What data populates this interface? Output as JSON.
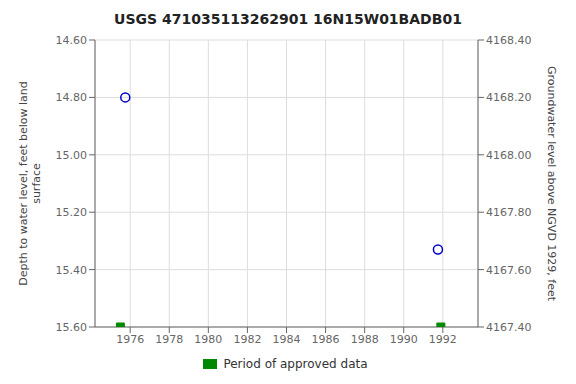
{
  "chart_data": {
    "type": "scatter",
    "title": "USGS 471035113262901 16N15W01BADB01",
    "ylabel": "Depth to water level, feet below land\n surface",
    "y2label": "Groundwater level above NGVD 1929, feet",
    "xlim": [
      1974.2,
      1993.8
    ],
    "xticks": [
      1976,
      1978,
      1980,
      1982,
      1984,
      1986,
      1988,
      1990,
      1992
    ],
    "ylim": [
      15.6,
      14.6
    ],
    "yticks": [
      {
        "value": 14.6,
        "label": "14.60"
      },
      {
        "value": 14.8,
        "label": "14.80"
      },
      {
        "value": 15.0,
        "label": "15.00"
      },
      {
        "value": 15.2,
        "label": "15.20"
      },
      {
        "value": 15.4,
        "label": "15.40"
      },
      {
        "value": 15.6,
        "label": "15.60"
      }
    ],
    "y2lim": [
      4167.4,
      4168.4
    ],
    "y2ticks": [
      {
        "value": 4168.4,
        "label": "4168.40"
      },
      {
        "value": 4168.2,
        "label": "4168.20"
      },
      {
        "value": 4168.0,
        "label": "4168.00"
      },
      {
        "value": 4167.8,
        "label": "4167.80"
      },
      {
        "value": 4167.6,
        "label": "4167.60"
      },
      {
        "value": 4167.4,
        "label": "4167.40"
      }
    ],
    "grid": true,
    "legend": "bottom",
    "series": [
      {
        "x": [
          1975.75,
          1991.75
        ],
        "values": [
          14.8,
          15.33
        ],
        "color": "#0000cc",
        "marker": "open_circle"
      },
      {
        "name": "Period of approved data",
        "x": [
          1975.5,
          1991.9
        ],
        "values": [
          15.6,
          15.6
        ],
        "color": "#008800",
        "marker": "square"
      }
    ]
  }
}
